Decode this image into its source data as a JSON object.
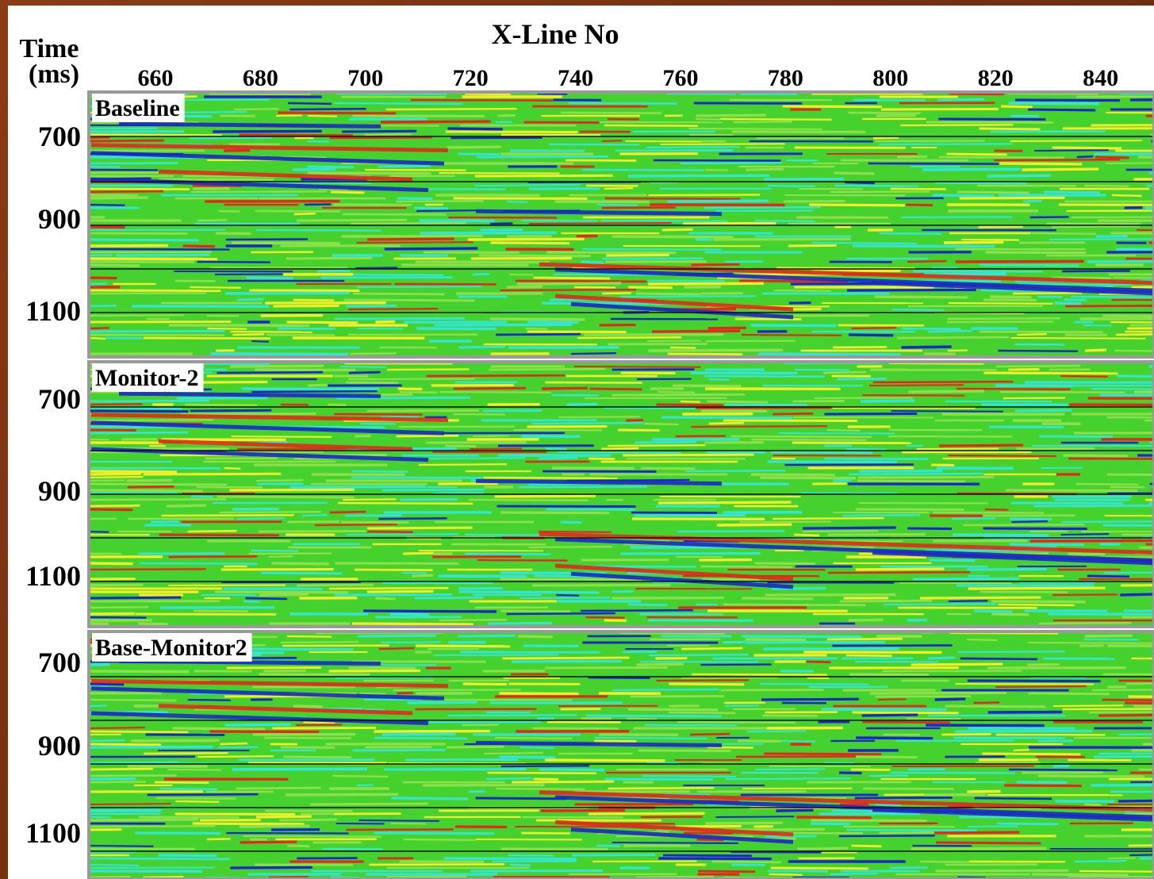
{
  "x_axis": {
    "title": "X-Line No",
    "ticks": [
      660,
      680,
      700,
      720,
      740,
      760,
      780,
      800,
      820,
      840
    ]
  },
  "y_axis": {
    "title_line1": "Time",
    "title_line2": "(ms)"
  },
  "panels": [
    {
      "label": "Baseline",
      "yticks": [
        700,
        900,
        1100
      ]
    },
    {
      "label": "Monitor-2",
      "yticks": [
        700,
        900,
        1100
      ]
    },
    {
      "label": "Base-Monitor2",
      "yticks": [
        700,
        900,
        1100
      ]
    }
  ]
}
